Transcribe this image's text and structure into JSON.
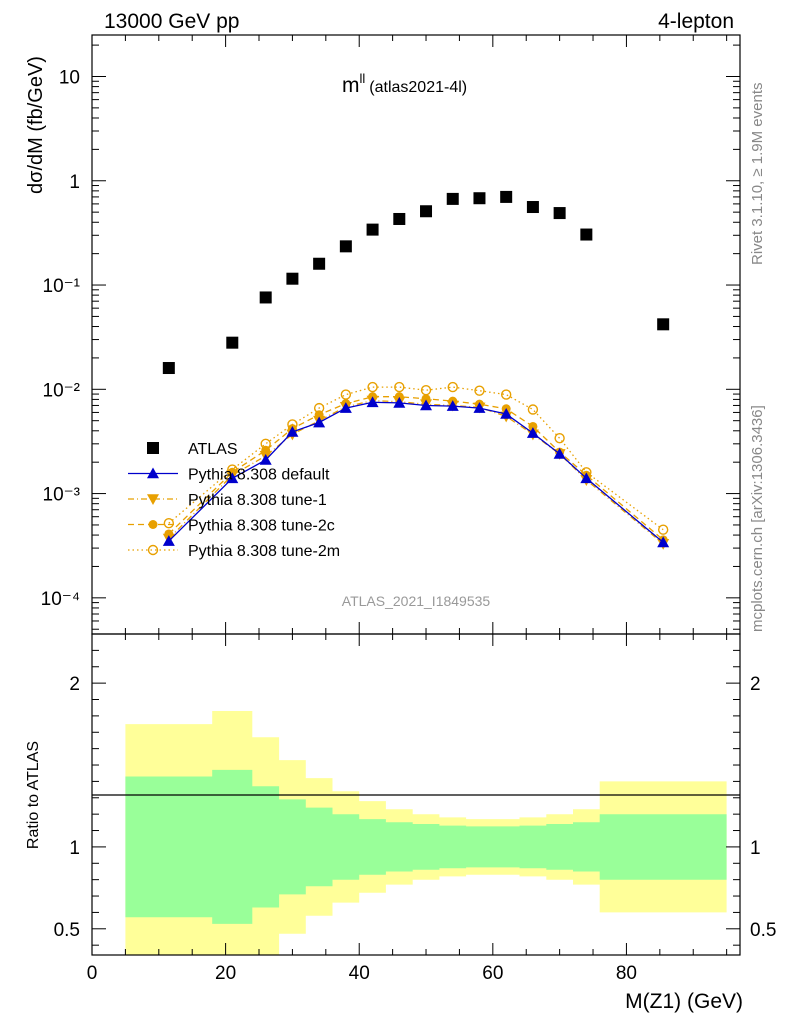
{
  "header": {
    "left": "13000 GeV pp",
    "right": "4-lepton",
    "plot_title_main": "m",
    "plot_title_sup": "ll",
    "plot_title_sub": "(atlas2021-4l)",
    "rivet": "Rivet 3.1.10, ≥ 1.9M events",
    "mcplots": "mcplots.cern.ch [arXiv:1306.3436]",
    "analysis": "ATLAS_2021_I1849535"
  },
  "colors": {
    "data": "#000000",
    "default": "#0000cc",
    "tunes": "#e8a000",
    "band_inner": "#99ff99",
    "band_outer": "#ffff99"
  },
  "chart_data": [
    {
      "type": "scatter",
      "xlabel": "",
      "ylabel": "dσ/dM (fb/GeV)",
      "xlim": [
        0,
        97
      ],
      "ylim": [
        4.5e-05,
        25
      ],
      "yscale": "log",
      "ytick_labels": [
        "10⁻⁴",
        "10⁻³",
        "10⁻²",
        "10⁻¹",
        "1",
        "10"
      ],
      "legend_position": "lower-left",
      "series": [
        {
          "name": "ATLAS",
          "marker": "square",
          "x": [
            11.5,
            21,
            26,
            30,
            34,
            38,
            42,
            46,
            50,
            54,
            58,
            62,
            66,
            70,
            74,
            85.5
          ],
          "y": [
            0.016,
            0.028,
            0.076,
            0.115,
            0.16,
            0.235,
            0.34,
            0.43,
            0.51,
            0.67,
            0.68,
            0.7,
            0.56,
            0.49,
            0.305,
            0.042
          ]
        },
        {
          "name": "Pythia 8.308 default",
          "marker": "triangle-up",
          "line": "solid",
          "x": [
            11.5,
            21,
            26,
            30,
            34,
            38,
            42,
            46,
            50,
            54,
            58,
            62,
            66,
            70,
            74,
            85.5
          ],
          "y": [
            0.00035,
            0.0014,
            0.0021,
            0.0039,
            0.0048,
            0.0066,
            0.0075,
            0.0074,
            0.007,
            0.0069,
            0.0066,
            0.0058,
            0.0038,
            0.0024,
            0.0014,
            0.00034
          ]
        },
        {
          "name": "Pythia 8.308 tune-1",
          "marker": "triangle-down",
          "line": "dashdot",
          "x": [
            11.5,
            21,
            26,
            30,
            34,
            38,
            42,
            46,
            50,
            54,
            58,
            62,
            66,
            70,
            74,
            85.5
          ],
          "y": [
            0.00037,
            0.0015,
            0.0023,
            0.0037,
            0.005,
            0.0068,
            0.0078,
            0.0076,
            0.0072,
            0.007,
            0.0067,
            0.0055,
            0.0037,
            0.0024,
            0.00135,
            0.00033
          ]
        },
        {
          "name": "Pythia 8.308 tune-2c",
          "marker": "circle",
          "line": "dashed",
          "x": [
            11.5,
            21,
            26,
            30,
            34,
            38,
            42,
            46,
            50,
            54,
            58,
            62,
            66,
            70,
            74,
            85.5
          ],
          "y": [
            0.00041,
            0.0016,
            0.0026,
            0.0042,
            0.0057,
            0.0073,
            0.0085,
            0.0085,
            0.0081,
            0.0077,
            0.0072,
            0.0065,
            0.0044,
            0.0025,
            0.0015,
            0.00036
          ]
        },
        {
          "name": "Pythia 8.308 tune-2m",
          "marker": "open-circle",
          "line": "dotted",
          "x": [
            11.5,
            21,
            26,
            30,
            34,
            38,
            42,
            46,
            50,
            54,
            58,
            62,
            66,
            70,
            74,
            85.5
          ],
          "y": [
            0.00052,
            0.0017,
            0.003,
            0.0046,
            0.0066,
            0.0089,
            0.0105,
            0.0105,
            0.0098,
            0.0105,
            0.0097,
            0.0089,
            0.0064,
            0.0034,
            0.0016,
            0.00045
          ]
        }
      ]
    },
    {
      "type": "area",
      "xlabel": "M(Z1) (GeV)",
      "ylabel": "Ratio to ATLAS",
      "xlim": [
        0,
        97
      ],
      "ylim": [
        0.34,
        2.3
      ],
      "xticks": [
        0,
        20,
        40,
        60,
        80
      ],
      "yticks": [
        0.5,
        1,
        2
      ],
      "ytick_labels": [
        "0.5",
        "1",
        "2"
      ],
      "bin_edges": [
        5,
        18,
        24,
        28,
        32,
        36,
        40,
        44,
        48,
        52,
        56,
        60,
        64,
        68,
        72,
        76,
        95
      ],
      "inner_band": {
        "hi": [
          1.43,
          1.47,
          1.37,
          1.29,
          1.24,
          1.2,
          1.17,
          1.15,
          1.14,
          1.13,
          1.125,
          1.125,
          1.13,
          1.14,
          1.15,
          1.2
        ],
        "lo": [
          0.57,
          0.53,
          0.63,
          0.71,
          0.76,
          0.8,
          0.83,
          0.85,
          0.86,
          0.87,
          0.875,
          0.875,
          0.87,
          0.86,
          0.85,
          0.8
        ]
      },
      "outer_band": {
        "hi": [
          1.75,
          1.83,
          1.67,
          1.53,
          1.42,
          1.34,
          1.28,
          1.23,
          1.2,
          1.18,
          1.17,
          1.17,
          1.18,
          1.2,
          1.23,
          1.4
        ],
        "lo": [
          0.25,
          0.17,
          0.33,
          0.47,
          0.58,
          0.66,
          0.72,
          0.77,
          0.8,
          0.82,
          0.83,
          0.83,
          0.82,
          0.8,
          0.77,
          0.6
        ]
      }
    }
  ]
}
